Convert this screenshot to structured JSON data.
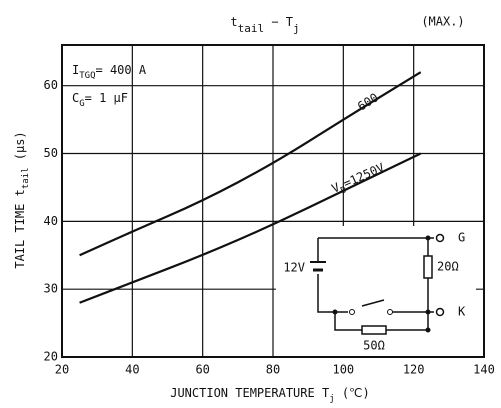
{
  "chart_data": {
    "type": "line",
    "title": [
      "t",
      "tail",
      " − T",
      "j"
    ],
    "note": "(MAX.)",
    "y_label": [
      "TAIL TIME  t",
      "tail",
      "  (μs)"
    ],
    "x_label": [
      "JUNCTION TEMPERATURE  T",
      "j",
      "  (℃)"
    ],
    "x": [
      25,
      40,
      60,
      80,
      100,
      122
    ],
    "series": [
      {
        "color": "#111111",
        "values": [
          35,
          38.5,
          43,
          48.5,
          55,
          62
        ]
      },
      {
        "color": "#111111",
        "values": [
          28,
          31,
          35,
          39.5,
          44.5,
          50
        ]
      }
    ],
    "xlim": [
      20,
      140
    ],
    "xticks": [
      20,
      40,
      60,
      80,
      100,
      120,
      140
    ],
    "ylim": [
      20,
      66
    ],
    "yticks": [
      20,
      30,
      40,
      50,
      60
    ],
    "grid": true,
    "annotations": {
      "itgq": [
        "I",
        "TGQ",
        "= 400 A"
      ],
      "cg": [
        "C",
        "G",
        "= 1 μF"
      ],
      "curve_600": [
        "600"
      ],
      "curve_vd": [
        "V",
        "D",
        "=1250V"
      ]
    },
    "circuit": {
      "gate": "G",
      "cathode": "K",
      "battery": "12V",
      "r1": "20Ω",
      "r2": "50Ω"
    }
  }
}
